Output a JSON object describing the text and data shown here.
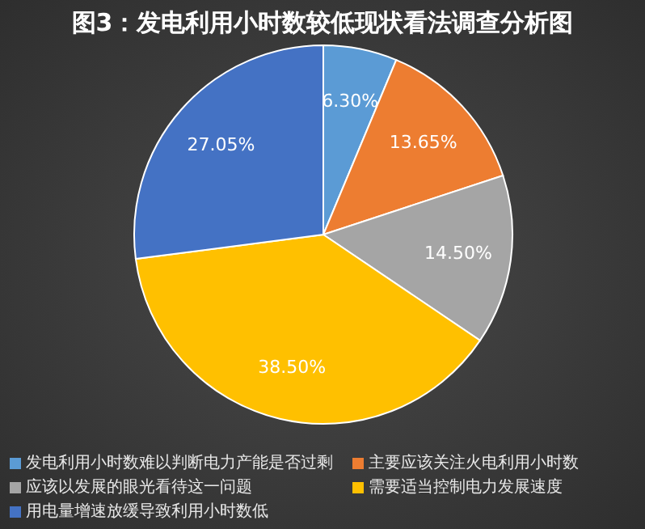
{
  "chart_data": {
    "type": "pie",
    "title": "图3：发电利用小时数较低现状看法调查分析图",
    "categories": [
      "发电利用小时数难以判断电力产能是否过剩",
      "主要应该关注火电利用小时数",
      "应该以发展的眼光看待这一问题",
      "需要适当控制电力发展速度",
      "用电量增速放缓导致利用小时数低"
    ],
    "values": [
      6.3,
      13.65,
      14.5,
      38.5,
      27.05
    ],
    "value_labels": [
      "6.30%",
      "13.65%",
      "14.50%",
      "38.50%",
      "27.05%"
    ],
    "colors": [
      "#5b9bd5",
      "#ed7d31",
      "#a5a5a5",
      "#ffc000",
      "#4472c4"
    ],
    "legend": "bottom"
  }
}
